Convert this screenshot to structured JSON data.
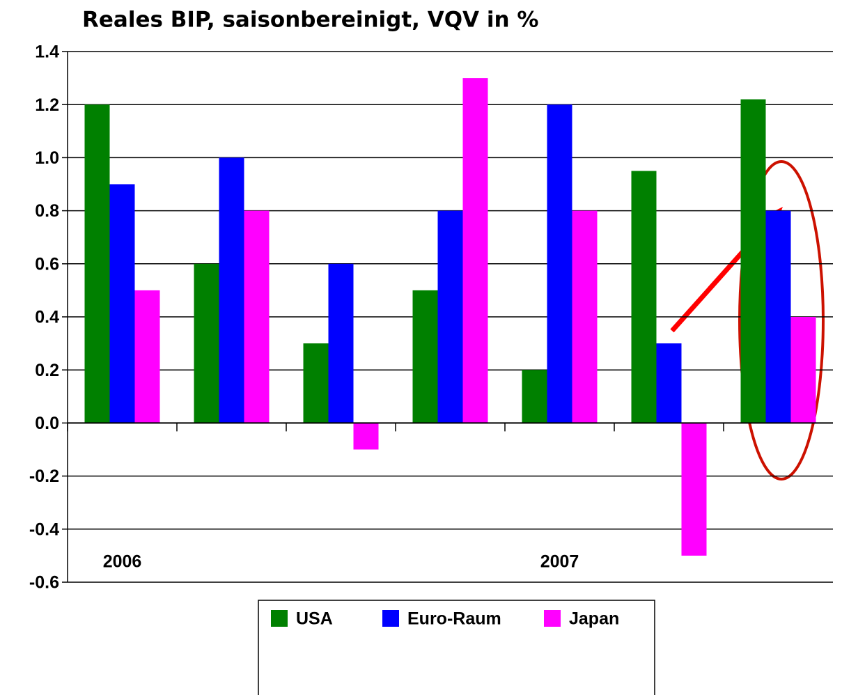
{
  "chart_data": {
    "type": "bar",
    "title": "Reales BIP, saisonbereinigt, VQV in %",
    "categories": [
      "2006",
      null,
      null,
      null,
      "2007",
      null,
      null
    ],
    "series": [
      {
        "name": "USA",
        "color": "#008000",
        "values": [
          1.2,
          0.6,
          0.3,
          0.5,
          0.2,
          0.95,
          1.22
        ]
      },
      {
        "name": "Euro-Raum",
        "color": "#0000ff",
        "values": [
          0.9,
          1.0,
          0.6,
          0.8,
          1.2,
          0.3,
          0.8
        ]
      },
      {
        "name": "Japan",
        "color": "#ff00ff",
        "values": [
          0.5,
          0.8,
          -0.1,
          1.3,
          0.8,
          -0.5,
          0.4
        ]
      }
    ],
    "ylim": [
      -0.6,
      1.4
    ],
    "yticks": [
      -0.6,
      -0.4,
      -0.2,
      {
        "value": 0,
        "label": "0.0"
      },
      0.2,
      0.4,
      0.6,
      0.8,
      {
        "value": 1,
        "label": "1.0"
      },
      1.2,
      1.4
    ],
    "grid": true,
    "legend": "bottom"
  }
}
